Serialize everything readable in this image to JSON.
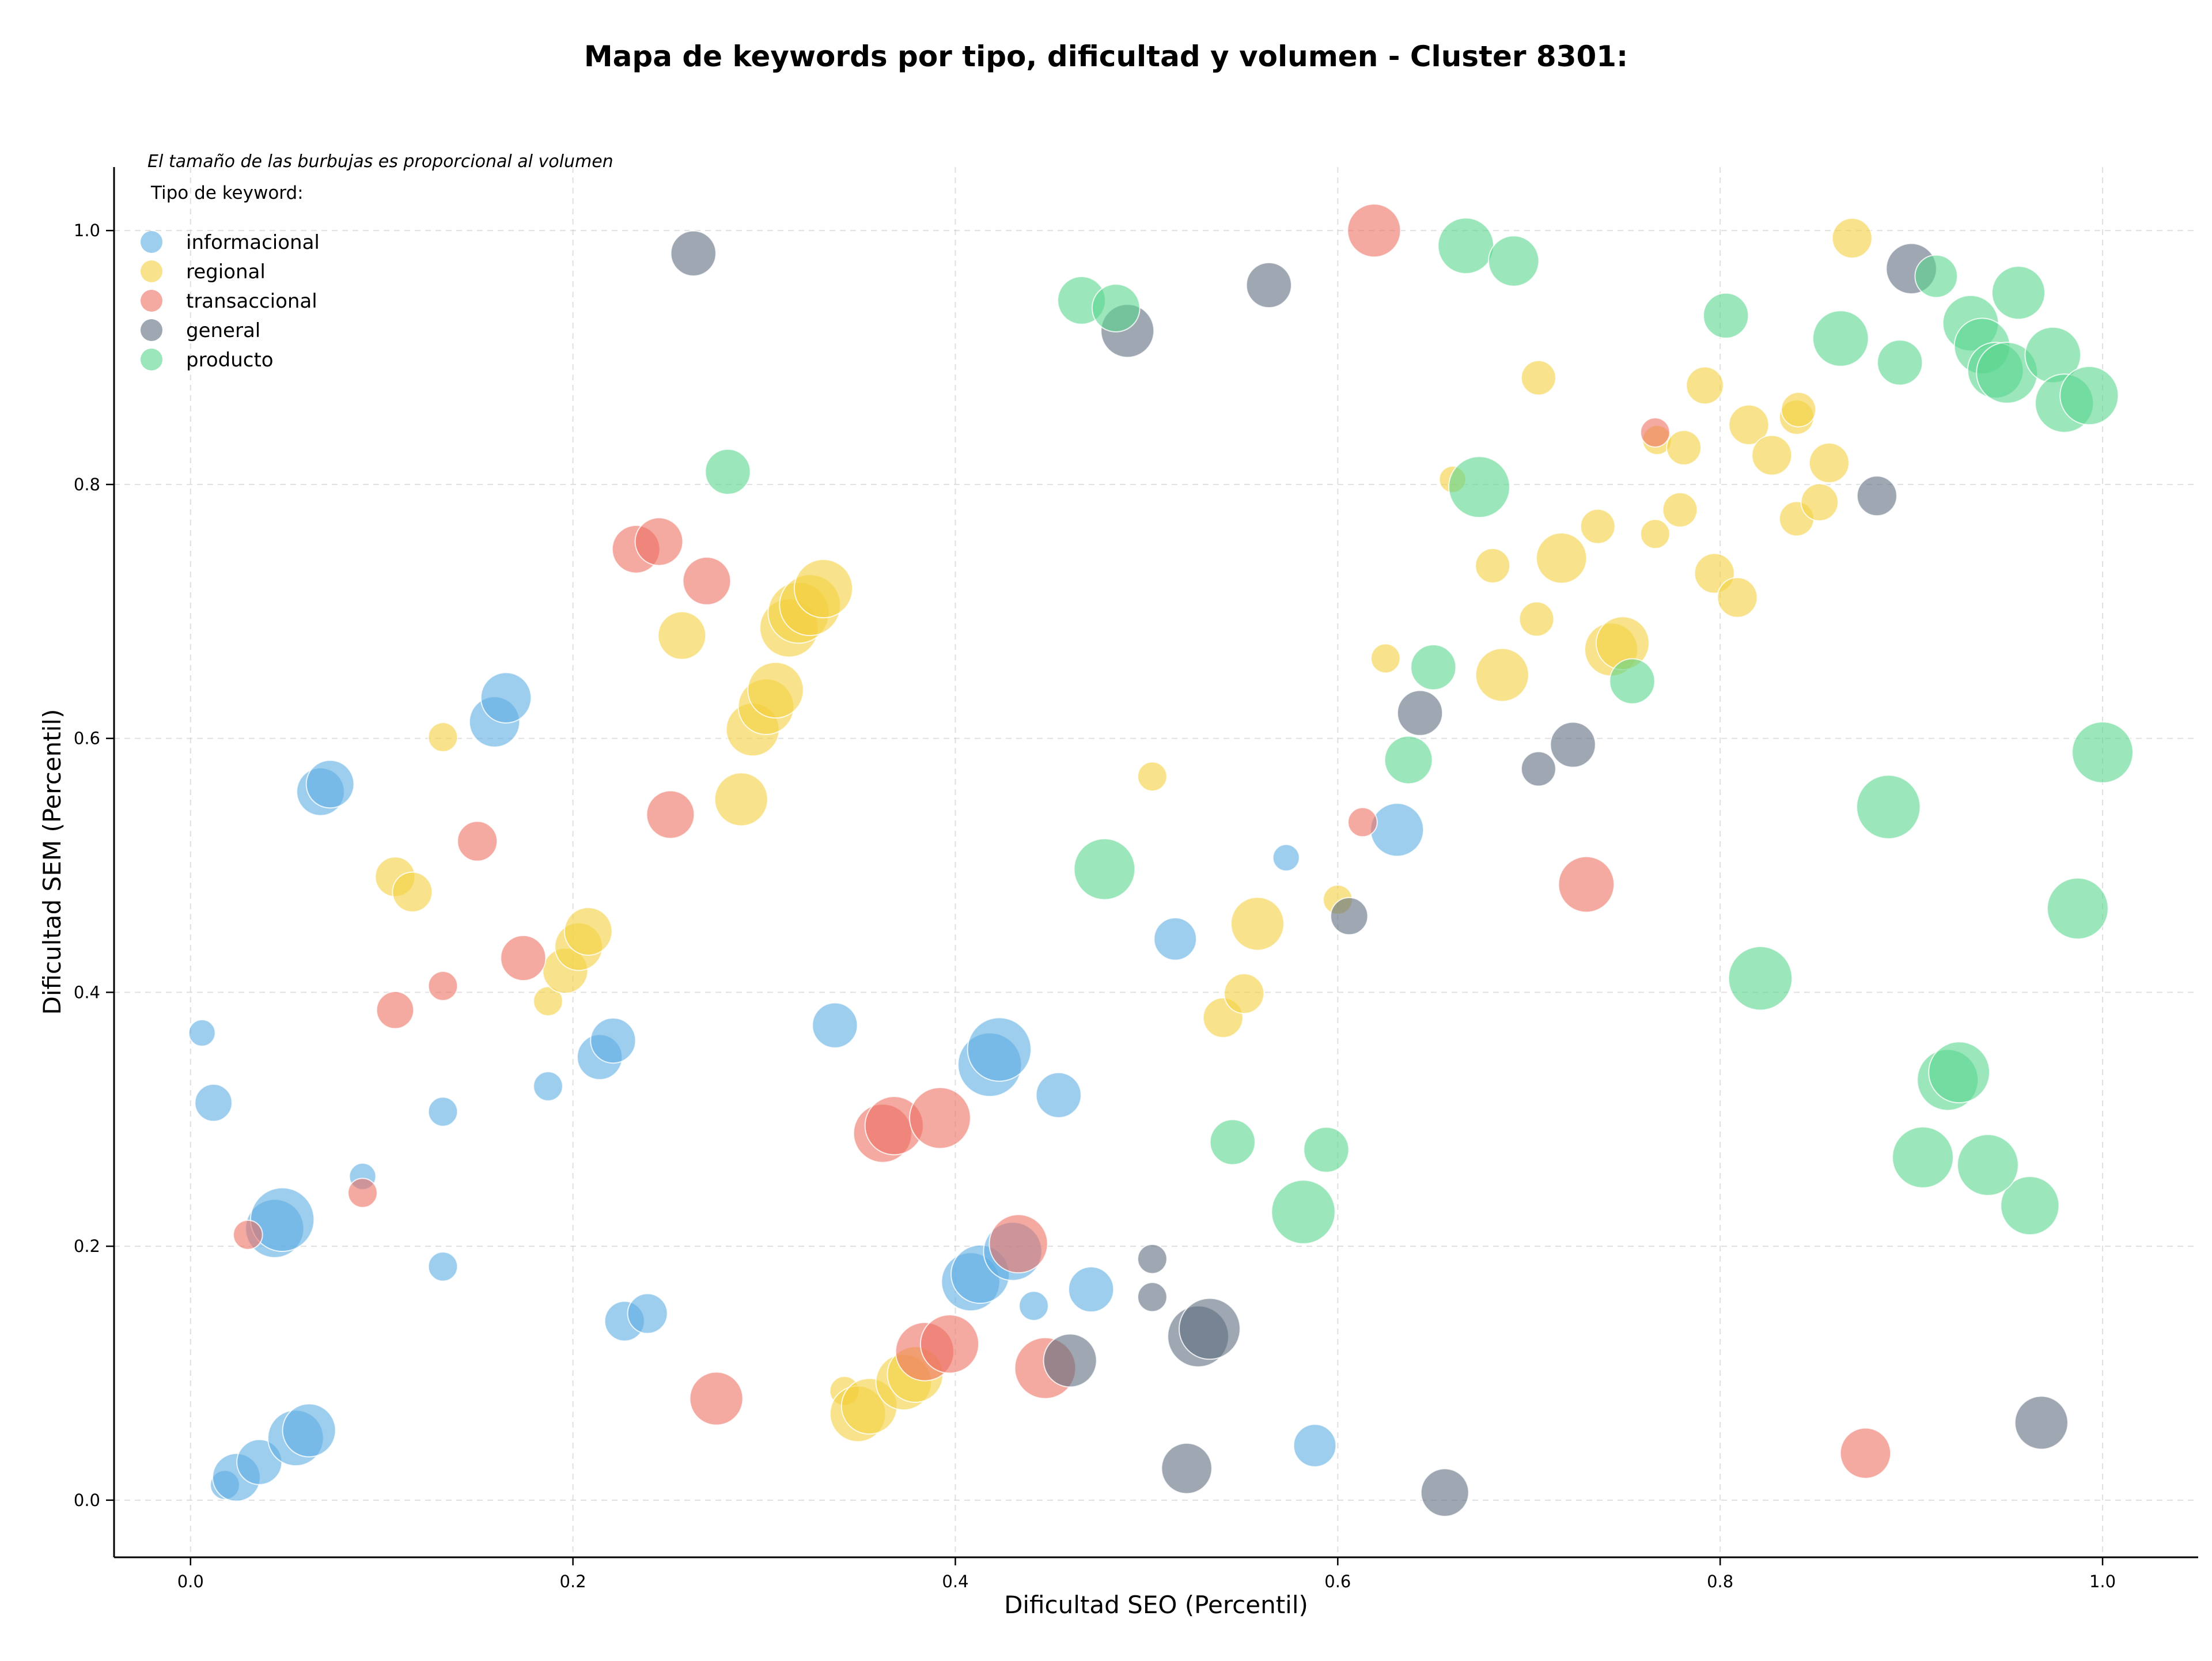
{
  "chart_data": {
    "type": "scatter",
    "title": "Mapa de keywords por tipo, dificultad y volumen - Cluster 8301:",
    "xlabel": "Dificultad SEO (Percentil)",
    "ylabel": "Dificultad SEM (Percentil)",
    "xlim": [
      -0.04,
      1.05
    ],
    "ylim": [
      -0.045,
      1.05
    ],
    "xticks": [
      "0.0",
      "0.2",
      "0.4",
      "0.6",
      "0.8",
      "1.0"
    ],
    "yticks": [
      "0.0",
      "0.2",
      "0.4",
      "0.6",
      "0.8",
      "1.0"
    ],
    "grid": true,
    "legend": {
      "placement": "top-left",
      "note": "El tamaño de las burbujas es proporcional al volumen",
      "title": "Tipo de keyword:"
    },
    "series": [
      {
        "name": "informacional",
        "color": "#5DADE2",
        "points": [
          [
            0.006,
            0.368,
            20
          ],
          [
            0.012,
            0.313,
            28
          ],
          [
            0.018,
            0.012,
            22
          ],
          [
            0.024,
            0.018,
            36
          ],
          [
            0.036,
            0.03,
            34
          ],
          [
            0.044,
            0.214,
            44
          ],
          [
            0.048,
            0.221,
            48
          ],
          [
            0.055,
            0.049,
            42
          ],
          [
            0.062,
            0.055,
            40
          ],
          [
            0.068,
            0.558,
            36
          ],
          [
            0.073,
            0.564,
            36
          ],
          [
            0.09,
            0.255,
            20
          ],
          [
            0.132,
            0.306,
            22
          ],
          [
            0.132,
            0.184,
            22
          ],
          [
            0.159,
            0.613,
            38
          ],
          [
            0.165,
            0.632,
            38
          ],
          [
            0.187,
            0.326,
            22
          ],
          [
            0.214,
            0.349,
            34
          ],
          [
            0.221,
            0.362,
            34
          ],
          [
            0.227,
            0.141,
            30
          ],
          [
            0.239,
            0.147,
            30
          ],
          [
            0.337,
            0.374,
            34
          ],
          [
            0.408,
            0.172,
            44
          ],
          [
            0.413,
            0.178,
            44
          ],
          [
            0.418,
            0.343,
            48
          ],
          [
            0.423,
            0.355,
            48
          ],
          [
            0.43,
            0.196,
            44
          ],
          [
            0.441,
            0.153,
            22
          ],
          [
            0.454,
            0.319,
            34
          ],
          [
            0.471,
            0.166,
            34
          ],
          [
            0.515,
            0.442,
            32
          ],
          [
            0.573,
            0.506,
            20
          ],
          [
            0.588,
            0.043,
            32
          ],
          [
            0.631,
            0.528,
            40
          ]
        ]
      },
      {
        "name": "regional",
        "color": "#F4D03F",
        "points": [
          [
            0.107,
            0.491,
            30
          ],
          [
            0.116,
            0.479,
            30
          ],
          [
            0.132,
            0.601,
            22
          ],
          [
            0.187,
            0.393,
            22
          ],
          [
            0.196,
            0.417,
            34
          ],
          [
            0.203,
            0.436,
            36
          ],
          [
            0.208,
            0.448,
            36
          ],
          [
            0.257,
            0.681,
            36
          ],
          [
            0.288,
            0.552,
            40
          ],
          [
            0.294,
            0.607,
            40
          ],
          [
            0.301,
            0.625,
            42
          ],
          [
            0.306,
            0.638,
            42
          ],
          [
            0.313,
            0.687,
            44
          ],
          [
            0.318,
            0.699,
            46
          ],
          [
            0.324,
            0.705,
            46
          ],
          [
            0.331,
            0.718,
            44
          ],
          [
            0.342,
            0.086,
            22
          ],
          [
            0.349,
            0.068,
            42
          ],
          [
            0.355,
            0.074,
            42
          ],
          [
            0.373,
            0.093,
            42
          ],
          [
            0.379,
            0.099,
            42
          ],
          [
            0.503,
            0.57,
            22
          ],
          [
            0.54,
            0.38,
            30
          ],
          [
            0.551,
            0.399,
            30
          ],
          [
            0.558,
            0.454,
            40
          ],
          [
            0.6,
            0.473,
            22
          ],
          [
            0.625,
            0.663,
            22
          ],
          [
            0.66,
            0.804,
            20
          ],
          [
            0.681,
            0.736,
            26
          ],
          [
            0.686,
            0.65,
            40
          ],
          [
            0.704,
            0.694,
            26
          ],
          [
            0.705,
            0.884,
            26
          ],
          [
            0.717,
            0.742,
            38
          ],
          [
            0.736,
            0.767,
            26
          ],
          [
            0.743,
            0.67,
            40
          ],
          [
            0.749,
            0.675,
            40
          ],
          [
            0.766,
            0.761,
            22
          ],
          [
            0.767,
            0.835,
            22
          ],
          [
            0.779,
            0.78,
            26
          ],
          [
            0.781,
            0.829,
            26
          ],
          [
            0.792,
            0.878,
            28
          ],
          [
            0.797,
            0.73,
            30
          ],
          [
            0.809,
            0.711,
            30
          ],
          [
            0.815,
            0.847,
            30
          ],
          [
            0.827,
            0.823,
            30
          ],
          [
            0.84,
            0.773,
            26
          ],
          [
            0.84,
            0.853,
            26
          ],
          [
            0.841,
            0.859,
            26
          ],
          [
            0.852,
            0.786,
            28
          ],
          [
            0.857,
            0.817,
            30
          ],
          [
            0.869,
            0.994,
            30
          ]
        ]
      },
      {
        "name": "transaccional",
        "color": "#EC7063",
        "points": [
          [
            0.03,
            0.209,
            22
          ],
          [
            0.09,
            0.242,
            22
          ],
          [
            0.107,
            0.386,
            28
          ],
          [
            0.132,
            0.405,
            22
          ],
          [
            0.15,
            0.519,
            30
          ],
          [
            0.174,
            0.427,
            34
          ],
          [
            0.233,
            0.749,
            36
          ],
          [
            0.245,
            0.755,
            36
          ],
          [
            0.251,
            0.54,
            36
          ],
          [
            0.27,
            0.724,
            36
          ],
          [
            0.275,
            0.08,
            40
          ],
          [
            0.362,
            0.289,
            44
          ],
          [
            0.368,
            0.295,
            44
          ],
          [
            0.392,
            0.301,
            46
          ],
          [
            0.384,
            0.117,
            44
          ],
          [
            0.397,
            0.123,
            44
          ],
          [
            0.433,
            0.202,
            44
          ],
          [
            0.447,
            0.104,
            46
          ],
          [
            0.613,
            0.534,
            22
          ],
          [
            0.619,
            1.0,
            40
          ],
          [
            0.73,
            0.485,
            42
          ],
          [
            0.766,
            0.841,
            22
          ],
          [
            0.876,
            0.037,
            38
          ]
        ]
      },
      {
        "name": "general",
        "color": "#5D6D7E",
        "points": [
          [
            0.263,
            0.982,
            34
          ],
          [
            0.49,
            0.921,
            40
          ],
          [
            0.503,
            0.19,
            22
          ],
          [
            0.503,
            0.16,
            22
          ],
          [
            0.521,
            0.025,
            38
          ],
          [
            0.527,
            0.129,
            46
          ],
          [
            0.533,
            0.135,
            46
          ],
          [
            0.46,
            0.11,
            40
          ],
          [
            0.564,
            0.957,
            34
          ],
          [
            0.606,
            0.46,
            28
          ],
          [
            0.643,
            0.62,
            34
          ],
          [
            0.656,
            0.006,
            36
          ],
          [
            0.705,
            0.576,
            26
          ],
          [
            0.723,
            0.595,
            34
          ],
          [
            0.882,
            0.791,
            30
          ],
          [
            0.9,
            0.97,
            38
          ],
          [
            0.968,
            0.061,
            40
          ]
        ]
      },
      {
        "name": "producto",
        "color": "#58D68D",
        "points": [
          [
            0.281,
            0.81,
            34
          ],
          [
            0.466,
            0.945,
            36
          ],
          [
            0.484,
            0.939,
            36
          ],
          [
            0.478,
            0.497,
            46
          ],
          [
            0.545,
            0.282,
            34
          ],
          [
            0.582,
            0.227,
            48
          ],
          [
            0.594,
            0.276,
            34
          ],
          [
            0.637,
            0.583,
            36
          ],
          [
            0.65,
            0.656,
            34
          ],
          [
            0.667,
            0.988,
            42
          ],
          [
            0.674,
            0.798,
            46
          ],
          [
            0.692,
            0.976,
            38
          ],
          [
            0.754,
            0.645,
            34
          ],
          [
            0.803,
            0.933,
            34
          ],
          [
            0.821,
            0.411,
            48
          ],
          [
            0.863,
            0.915,
            42
          ],
          [
            0.888,
            0.546,
            48
          ],
          [
            0.894,
            0.896,
            34
          ],
          [
            0.906,
            0.27,
            46
          ],
          [
            0.913,
            0.964,
            32
          ],
          [
            0.919,
            0.331,
            46
          ],
          [
            0.925,
            0.337,
            46
          ],
          [
            0.931,
            0.927,
            42
          ],
          [
            0.937,
            0.909,
            42
          ],
          [
            0.944,
            0.89,
            42
          ],
          [
            0.95,
            0.888,
            46
          ],
          [
            0.956,
            0.951,
            40
          ],
          [
            0.962,
            0.232,
            44
          ],
          [
            0.974,
            0.902,
            42
          ],
          [
            0.98,
            0.864,
            44
          ],
          [
            0.987,
            0.466,
            46
          ],
          [
            0.993,
            0.87,
            44
          ],
          [
            1.0,
            0.589,
            46
          ],
          [
            0.94,
            0.264,
            46
          ]
        ]
      }
    ]
  }
}
